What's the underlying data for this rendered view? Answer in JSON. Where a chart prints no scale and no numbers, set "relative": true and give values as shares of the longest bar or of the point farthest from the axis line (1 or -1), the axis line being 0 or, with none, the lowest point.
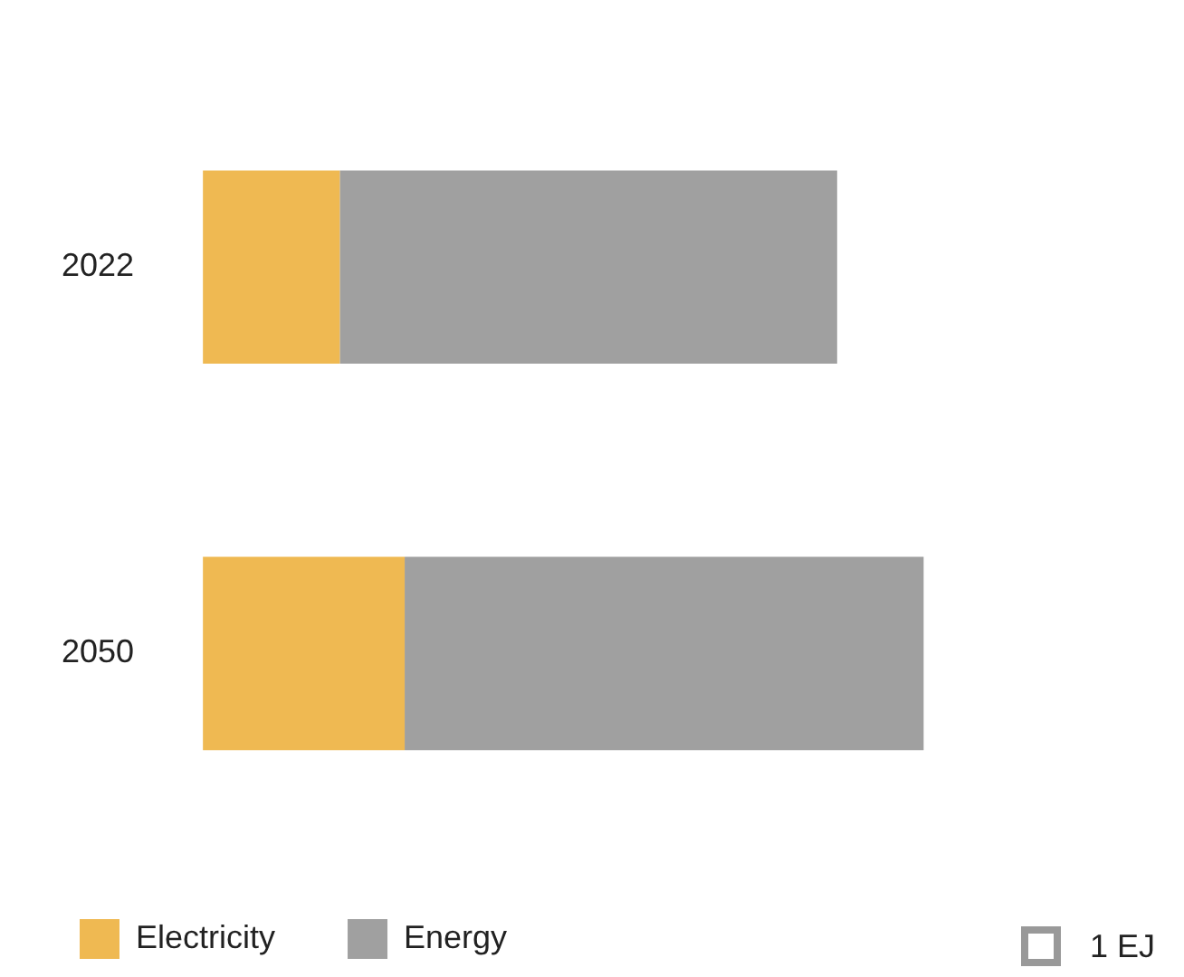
{
  "chart_data": {
    "type": "bar",
    "orientation": "horizontal",
    "stacked": true,
    "categories": [
      "2022",
      "2050"
    ],
    "series": [
      {
        "name": "Electricity",
        "color": "#efb952",
        "values": [
          0.19,
          0.28
        ]
      },
      {
        "name": "Energy",
        "color": "#a0a0a0",
        "values": [
          0.69,
          0.72
        ]
      }
    ],
    "relative": true,
    "tick_labels": "y",
    "grid": false,
    "legend": "bottom",
    "annotations": [
      "1 EJ"
    ]
  }
}
